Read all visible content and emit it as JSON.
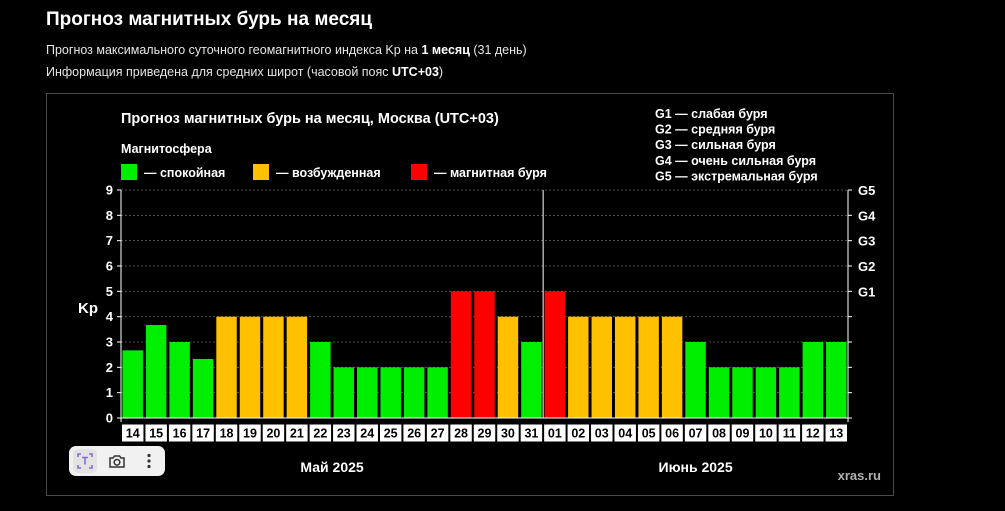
{
  "page": {
    "title": "Прогноз магнитных бурь на месяц",
    "line1": {
      "prefix": "Прогноз максимального суточного геомагнитного индекса Kp на ",
      "bold": "1 месяц",
      "suffix": " (31 день)"
    },
    "line2": {
      "prefix": "Информация приведена для средних широт (часовой пояс ",
      "bold": "UTC+03",
      "suffix": ")"
    }
  },
  "toolbar": {
    "icons": [
      "text-select-icon",
      "camera-icon",
      "more-vertical-icon"
    ]
  },
  "colors": {
    "quiet": "#00ee00",
    "active": "#ffc000",
    "storm": "#ff0000",
    "background": "#000000",
    "text": "#ffffff"
  },
  "chart_data": {
    "type": "bar",
    "title": "Прогноз магнитных бурь на месяц, Москва (UTC+03)",
    "ylabel": "Kp",
    "ylim": [
      0,
      9
    ],
    "yticks": [
      0,
      1,
      2,
      3,
      4,
      5,
      6,
      7,
      8,
      9
    ],
    "right_ticks": [
      {
        "kp": 5,
        "label": "G1"
      },
      {
        "kp": 6,
        "label": "G2"
      },
      {
        "kp": 7,
        "label": "G3"
      },
      {
        "kp": 8,
        "label": "G4"
      },
      {
        "kp": 9,
        "label": "G5"
      }
    ],
    "grid": true,
    "legend_title": "Магнитосфера",
    "legend": [
      {
        "key": "quiet",
        "label": "— спокойная"
      },
      {
        "key": "active",
        "label": "— возбужденная"
      },
      {
        "key": "storm",
        "label": "— магнитная буря"
      }
    ],
    "storm_levels": [
      "G1 — слабая буря",
      "G2 — средняя буря",
      "G3 — сильная буря",
      "G4 — очень сильная буря",
      "G5 — экстремальная буря"
    ],
    "categories": [
      "14",
      "15",
      "16",
      "17",
      "18",
      "19",
      "20",
      "21",
      "22",
      "23",
      "24",
      "25",
      "26",
      "27",
      "28",
      "29",
      "30",
      "31",
      "01",
      "02",
      "03",
      "04",
      "05",
      "06",
      "07",
      "08",
      "09",
      "10",
      "11",
      "12",
      "13"
    ],
    "values": [
      2.67,
      3.67,
      3,
      2.33,
      4,
      4,
      4,
      4,
      3,
      2,
      2,
      2,
      2,
      2,
      5,
      5,
      4,
      3,
      5,
      4,
      4,
      4,
      4,
      4,
      3,
      2,
      2,
      2,
      2,
      3,
      3
    ],
    "levels": [
      "quiet",
      "quiet",
      "quiet",
      "quiet",
      "active",
      "active",
      "active",
      "active",
      "quiet",
      "quiet",
      "quiet",
      "quiet",
      "quiet",
      "quiet",
      "storm",
      "storm",
      "active",
      "quiet",
      "storm",
      "active",
      "active",
      "active",
      "active",
      "active",
      "quiet",
      "quiet",
      "quiet",
      "quiet",
      "quiet",
      "quiet",
      "quiet"
    ],
    "months": [
      {
        "label": "Май 2025",
        "count": 18
      },
      {
        "label": "Июнь 2025",
        "count": 13
      }
    ],
    "watermark": "xras.ru"
  }
}
